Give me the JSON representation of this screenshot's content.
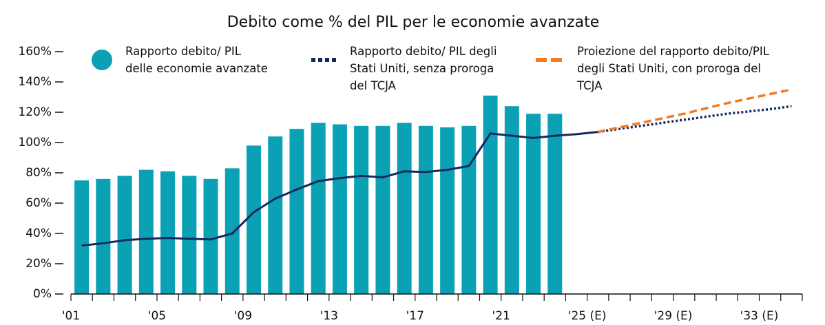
{
  "chart_data": {
    "type": "bar_line",
    "title": "Debito come % del PIL per le economie avanzate",
    "categories": [
      "'01",
      null,
      null,
      null,
      "'05",
      null,
      null,
      null,
      "'09",
      null,
      null,
      null,
      "'13",
      null,
      null,
      null,
      "'17",
      null,
      null,
      null,
      "'21",
      null,
      null,
      null,
      "'25 (E)",
      null,
      null,
      null,
      "'29 (E)",
      null,
      null,
      null,
      "'33 (E)",
      null
    ],
    "ylim": [
      0,
      160
    ],
    "yticks": [
      {
        "value": 0,
        "label": "0%"
      },
      {
        "value": 20,
        "label": "20%"
      },
      {
        "value": 40,
        "label": "40%"
      },
      {
        "value": 60,
        "label": "60%"
      },
      {
        "value": 80,
        "label": "80%"
      },
      {
        "value": 100,
        "label": "100%"
      },
      {
        "value": 120,
        "label": "120%"
      },
      {
        "value": 140,
        "label": "140%"
      },
      {
        "value": 160,
        "label": "160%"
      }
    ],
    "series": [
      {
        "name": "Rapporto debito/ PIL delle economie avanzate",
        "kind": "bar",
        "color": "#0aa1b5",
        "values": [
          75,
          76,
          78,
          82,
          81,
          78,
          76,
          83,
          98,
          104,
          109,
          113,
          112,
          111,
          111,
          113,
          111,
          110,
          111,
          131,
          124,
          119,
          119,
          null,
          null,
          null,
          null,
          null,
          null,
          null,
          null,
          null,
          null,
          null
        ]
      },
      {
        "kind": "line",
        "style": "solid",
        "color": "#13295e",
        "values": [
          32,
          33.5,
          35.5,
          36.5,
          37,
          36.5,
          36,
          40,
          54,
          63,
          69,
          74.5,
          76.5,
          78,
          77,
          81,
          80.5,
          82,
          84.5,
          106,
          104.5,
          103,
          104.5,
          105.5,
          107,
          null,
          null,
          null,
          null,
          null,
          null,
          null,
          null,
          null
        ]
      },
      {
        "name": "Rapporto debito/ PIL degli Stati Uniti, senza proroga del TCJA",
        "kind": "line",
        "style": "dotted",
        "color": "#13295e",
        "values": [
          null,
          null,
          null,
          null,
          null,
          null,
          null,
          null,
          null,
          null,
          null,
          null,
          null,
          null,
          null,
          null,
          null,
          null,
          null,
          null,
          null,
          null,
          null,
          null,
          107,
          109,
          111,
          113,
          115,
          117,
          119,
          120.5,
          122,
          124
        ]
      },
      {
        "name": "Proiezione del rapporto debito/PIL degli Stati Uniti, con proroga del TCJA",
        "kind": "line",
        "style": "dashed",
        "color": "#f47b20",
        "values": [
          null,
          null,
          null,
          null,
          null,
          null,
          null,
          null,
          null,
          null,
          null,
          null,
          null,
          null,
          null,
          null,
          null,
          null,
          null,
          null,
          null,
          null,
          null,
          null,
          107,
          110,
          113,
          116,
          119,
          122.5,
          126,
          129,
          132,
          135
        ]
      }
    ]
  }
}
